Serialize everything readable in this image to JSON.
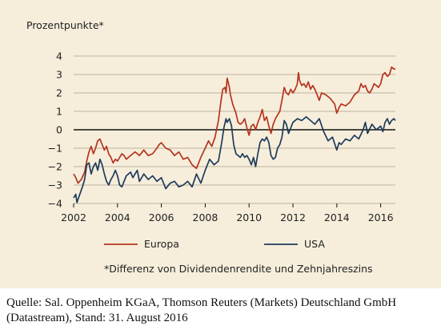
{
  "chart_data": {
    "type": "line",
    "ylabel": "Prozentpunkte*",
    "ylim": [
      -4,
      4
    ],
    "xlim": [
      2002,
      2016.67
    ],
    "y_ticks": [
      "4",
      "3",
      "2",
      "1",
      "0",
      "−1",
      "−2",
      "−3",
      "−4"
    ],
    "y_tick_values": [
      4,
      3,
      2,
      1,
      0,
      -1,
      -2,
      -3,
      -4
    ],
    "x_ticks": [
      "2002",
      "2004",
      "2006",
      "2008",
      "2010",
      "2012",
      "2014",
      "2016"
    ],
    "x_tick_values": [
      2002,
      2004,
      2006,
      2008,
      2010,
      2012,
      2014,
      2016
    ],
    "grid": true,
    "legend_position": "bottom",
    "footnote": "*Differenz von Dividendenrendite und Zehnjahreszins",
    "series": [
      {
        "name": "Europa",
        "color": "#b5341f",
        "x": [
          2002.0,
          2002.1,
          2002.2,
          2002.35,
          2002.5,
          2002.6,
          2002.7,
          2002.8,
          2002.9,
          2003.0,
          2003.1,
          2003.2,
          2003.3,
          2003.4,
          2003.5,
          2003.6,
          2003.7,
          2003.8,
          2003.9,
          2004.0,
          2004.1,
          2004.2,
          2004.3,
          2004.4,
          2004.5,
          2004.6,
          2004.7,
          2004.8,
          2004.9,
          2005.0,
          2005.2,
          2005.4,
          2005.6,
          2005.8,
          2005.9,
          2006.0,
          2006.2,
          2006.4,
          2006.6,
          2006.8,
          2007.0,
          2007.2,
          2007.4,
          2007.6,
          2007.7,
          2007.8,
          2008.0,
          2008.15,
          2008.3,
          2008.45,
          2008.6,
          2008.7,
          2008.8,
          2008.9,
          2008.95,
          2009.0,
          2009.1,
          2009.15,
          2009.25,
          2009.4,
          2009.5,
          2009.6,
          2009.7,
          2009.8,
          2009.9,
          2010.0,
          2010.1,
          2010.2,
          2010.3,
          2010.4,
          2010.5,
          2010.6,
          2010.65,
          2010.7,
          2010.8,
          2010.9,
          2011.0,
          2011.1,
          2011.2,
          2011.3,
          2011.4,
          2011.5,
          2011.6,
          2011.7,
          2011.8,
          2011.9,
          2012.0,
          2012.1,
          2012.2,
          2012.25,
          2012.3,
          2012.4,
          2012.5,
          2012.6,
          2012.7,
          2012.8,
          2012.9,
          2013.0,
          2013.1,
          2013.2,
          2013.3,
          2013.5,
          2013.7,
          2013.9,
          2014.0,
          2014.1,
          2014.2,
          2014.4,
          2014.6,
          2014.8,
          2015.0,
          2015.1,
          2015.2,
          2015.3,
          2015.4,
          2015.5,
          2015.6,
          2015.7,
          2015.8,
          2015.9,
          2016.0,
          2016.1,
          2016.2,
          2016.3,
          2016.4,
          2016.5,
          2016.6,
          2016.67
        ],
        "values": [
          -2.4,
          -2.6,
          -2.9,
          -2.7,
          -2.3,
          -1.7,
          -1.2,
          -0.9,
          -1.3,
          -1.0,
          -0.6,
          -0.5,
          -0.8,
          -1.1,
          -0.9,
          -1.3,
          -1.5,
          -1.8,
          -1.6,
          -1.7,
          -1.5,
          -1.3,
          -1.4,
          -1.6,
          -1.5,
          -1.4,
          -1.3,
          -1.2,
          -1.3,
          -1.4,
          -1.1,
          -1.4,
          -1.3,
          -1.0,
          -0.8,
          -0.7,
          -1.0,
          -1.1,
          -1.4,
          -1.2,
          -1.6,
          -1.5,
          -1.9,
          -2.1,
          -1.8,
          -1.5,
          -1.0,
          -0.6,
          -0.9,
          -0.4,
          0.5,
          1.4,
          2.2,
          2.3,
          2.0,
          2.8,
          2.3,
          1.9,
          1.4,
          0.9,
          0.4,
          0.3,
          0.4,
          0.6,
          0.1,
          -0.3,
          0.2,
          0.3,
          0.0,
          0.4,
          0.7,
          1.1,
          0.8,
          0.5,
          0.7,
          0.2,
          -0.2,
          0.3,
          0.6,
          0.8,
          1.0,
          1.6,
          2.3,
          2.0,
          1.9,
          2.2,
          2.0,
          2.2,
          2.5,
          3.1,
          2.7,
          2.4,
          2.5,
          2.3,
          2.6,
          2.2,
          2.4,
          2.2,
          1.9,
          1.6,
          2.0,
          1.9,
          1.7,
          1.4,
          0.9,
          1.2,
          1.4,
          1.3,
          1.5,
          1.9,
          2.1,
          2.5,
          2.3,
          2.4,
          2.1,
          2.0,
          2.2,
          2.5,
          2.4,
          2.3,
          2.5,
          3.0,
          3.1,
          2.9,
          3.0,
          3.4,
          3.3,
          3.3
        ]
      },
      {
        "name": "USA",
        "color": "#1e3b5c",
        "x": [
          2002.0,
          2002.1,
          2002.15,
          2002.25,
          2002.4,
          2002.5,
          2002.6,
          2002.7,
          2002.8,
          2002.9,
          2003.0,
          2003.1,
          2003.2,
          2003.3,
          2003.4,
          2003.5,
          2003.6,
          2003.7,
          2003.8,
          2003.9,
          2004.0,
          2004.1,
          2004.2,
          2004.3,
          2004.4,
          2004.5,
          2004.6,
          2004.7,
          2004.8,
          2004.9,
          2005.0,
          2005.2,
          2005.4,
          2005.6,
          2005.8,
          2006.0,
          2006.2,
          2006.4,
          2006.6,
          2006.8,
          2007.0,
          2007.2,
          2007.4,
          2007.6,
          2007.8,
          2008.0,
          2008.2,
          2008.4,
          2008.6,
          2008.75,
          2008.85,
          2008.95,
          2009.0,
          2009.1,
          2009.2,
          2009.3,
          2009.4,
          2009.5,
          2009.6,
          2009.7,
          2009.8,
          2009.9,
          2010.0,
          2010.1,
          2010.2,
          2010.3,
          2010.4,
          2010.5,
          2010.6,
          2010.7,
          2010.8,
          2010.9,
          2011.0,
          2011.1,
          2011.2,
          2011.3,
          2011.4,
          2011.5,
          2011.6,
          2011.7,
          2011.8,
          2011.9,
          2012.0,
          2012.2,
          2012.4,
          2012.6,
          2012.8,
          2013.0,
          2013.2,
          2013.4,
          2013.6,
          2013.8,
          2014.0,
          2014.1,
          2014.2,
          2014.4,
          2014.6,
          2014.8,
          2015.0,
          2015.2,
          2015.3,
          2015.4,
          2015.6,
          2015.8,
          2015.9,
          2016.0,
          2016.1,
          2016.2,
          2016.3,
          2016.4,
          2016.5,
          2016.6,
          2016.67
        ],
        "values": [
          -3.7,
          -3.5,
          -3.95,
          -3.6,
          -3.1,
          -2.7,
          -1.9,
          -1.8,
          -2.4,
          -2.0,
          -1.8,
          -2.2,
          -1.6,
          -1.9,
          -2.4,
          -2.8,
          -3.0,
          -2.7,
          -2.5,
          -2.2,
          -2.5,
          -3.0,
          -3.1,
          -2.8,
          -2.5,
          -2.4,
          -2.3,
          -2.6,
          -2.4,
          -2.2,
          -2.8,
          -2.4,
          -2.7,
          -2.5,
          -2.8,
          -2.6,
          -3.2,
          -2.9,
          -2.8,
          -3.1,
          -3.0,
          -2.8,
          -3.1,
          -2.4,
          -2.9,
          -2.2,
          -1.6,
          -1.9,
          -1.7,
          -0.7,
          0.1,
          0.6,
          0.4,
          0.6,
          0.2,
          -0.8,
          -1.3,
          -1.4,
          -1.5,
          -1.3,
          -1.5,
          -1.4,
          -1.6,
          -1.9,
          -1.5,
          -2.0,
          -1.3,
          -0.7,
          -0.5,
          -0.6,
          -0.4,
          -0.7,
          -1.4,
          -1.6,
          -1.5,
          -1.0,
          -0.8,
          -0.4,
          0.5,
          0.3,
          -0.2,
          0.1,
          0.4,
          0.6,
          0.5,
          0.7,
          0.5,
          0.3,
          0.6,
          -0.1,
          -0.6,
          -0.4,
          -1.1,
          -0.7,
          -0.8,
          -0.5,
          -0.6,
          -0.3,
          -0.5,
          0.0,
          0.4,
          -0.2,
          0.3,
          0.0,
          0.1,
          0.2,
          -0.1,
          0.4,
          0.6,
          0.3,
          0.5,
          0.6,
          0.5
        ]
      }
    ]
  },
  "source": "Quelle: Sal. Oppenheim KGaA, Thomson Reuters (Markets) Deutschland GmbH (Datastream), Stand: 31. August 2016"
}
